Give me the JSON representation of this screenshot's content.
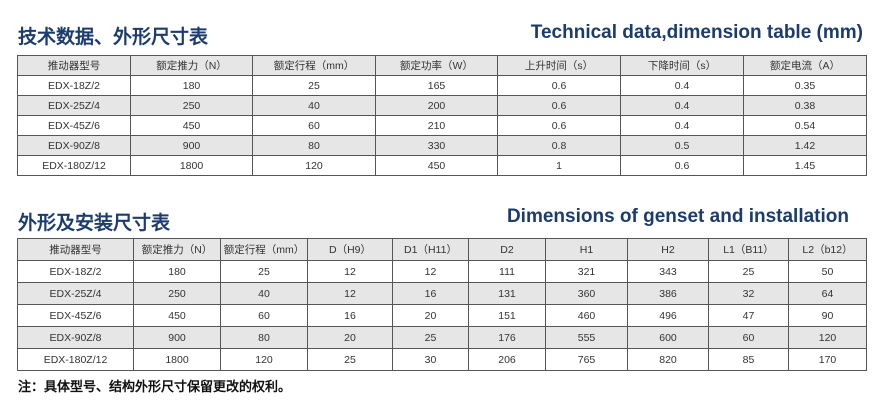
{
  "section1": {
    "title_cn": "技术数据、外形尺寸表",
    "title_en": "Technical data,dimension table (mm)"
  },
  "table1": {
    "header": [
      "推动器型号",
      "额定推力（N）",
      "额定行程（mm）",
      "额定功率（W）",
      "上升时间（s）",
      "下降时间（s）",
      "额定电流（A）"
    ],
    "rows": [
      [
        "EDX-18Z/2",
        "180",
        "25",
        "165",
        "0.6",
        "0.4",
        "0.35"
      ],
      [
        "EDX-25Z/4",
        "250",
        "40",
        "200",
        "0.6",
        "0.4",
        "0.38"
      ],
      [
        "EDX-45Z/6",
        "450",
        "60",
        "210",
        "0.6",
        "0.4",
        "0.54"
      ],
      [
        "EDX-90Z/8",
        "900",
        "80",
        "330",
        "0.8",
        "0.5",
        "1.42"
      ],
      [
        "EDX-180Z/12",
        "1800",
        "120",
        "450",
        "1",
        "0.6",
        "1.45"
      ]
    ]
  },
  "section2": {
    "title_cn": "外形及安装尺寸表",
    "title_en": "Dimensions of genset and installation"
  },
  "table2": {
    "header": [
      "推动器型号",
      "额定推力（N）",
      "额定行程（mm）",
      "D（H9）",
      "D1（H11）",
      "D2",
      "H1",
      "H2",
      "L1（B11）",
      "L2（b12）"
    ],
    "rows": [
      [
        "EDX-18Z/2",
        "180",
        "25",
        "12",
        "12",
        "111",
        "321",
        "343",
        "25",
        "50"
      ],
      [
        "EDX-25Z/4",
        "250",
        "40",
        "12",
        "16",
        "131",
        "360",
        "386",
        "32",
        "64"
      ],
      [
        "EDX-45Z/6",
        "450",
        "60",
        "16",
        "20",
        "151",
        "460",
        "496",
        "47",
        "90"
      ],
      [
        "EDX-90Z/8",
        "900",
        "80",
        "20",
        "25",
        "176",
        "555",
        "600",
        "60",
        "120"
      ],
      [
        "EDX-180Z/12",
        "1800",
        "120",
        "25",
        "30",
        "206",
        "765",
        "820",
        "85",
        "170"
      ]
    ]
  },
  "note": "注：具体型号、结构外形尺寸保留更改的权利。"
}
